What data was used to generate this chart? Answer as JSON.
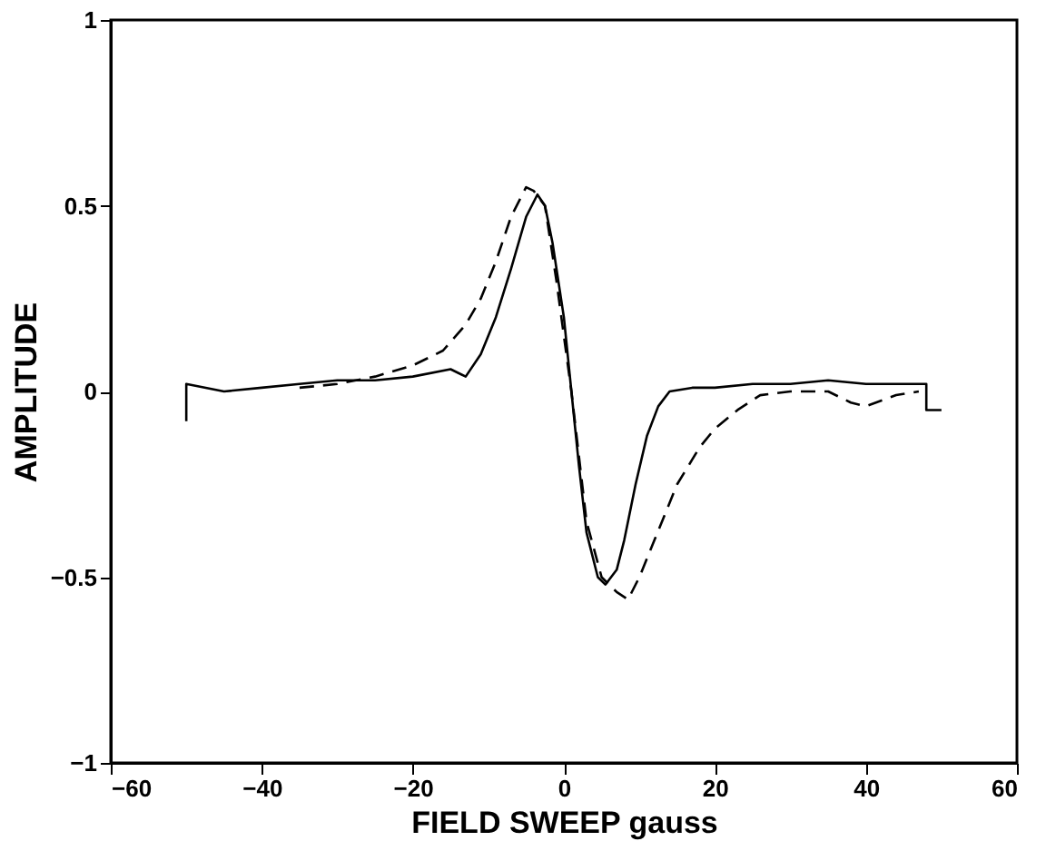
{
  "chart_data": {
    "type": "line",
    "xlabel": "FIELD SWEEP  gauss",
    "ylabel": "AMPLITUDE",
    "xlim": [
      -60,
      60
    ],
    "xticks": [
      -60,
      -40,
      -20,
      0,
      20,
      40,
      60
    ],
    "ylim": [
      -1,
      1
    ],
    "yticks": [
      -1,
      -0.5,
      0,
      0.5,
      1
    ],
    "grid": false,
    "series": [
      {
        "color": "#000000",
        "line_style": "solid",
        "x": [
          -50,
          -50,
          -45,
          -40,
          -35,
          -30,
          -25,
          -20,
          -15,
          -13,
          -11,
          -9,
          -7,
          -5,
          -3.5,
          -2.5,
          -1.5,
          0,
          1,
          2,
          3,
          4.5,
          5.5,
          7,
          8,
          9.5,
          11,
          12.5,
          14,
          17,
          20,
          25,
          30,
          35,
          40,
          45,
          48,
          48,
          50
        ],
        "values": [
          -0.08,
          0.02,
          0.0,
          0.01,
          0.02,
          0.03,
          0.03,
          0.04,
          0.06,
          0.04,
          0.1,
          0.2,
          0.33,
          0.47,
          0.53,
          0.5,
          0.4,
          0.2,
          0.0,
          -0.2,
          -0.38,
          -0.5,
          -0.52,
          -0.48,
          -0.4,
          -0.25,
          -0.12,
          -0.04,
          0.0,
          0.01,
          0.01,
          0.02,
          0.02,
          0.03,
          0.02,
          0.02,
          0.02,
          -0.05,
          -0.05
        ]
      },
      {
        "color": "#000000",
        "line_style": "dashed",
        "x": [
          -35,
          -30,
          -25,
          -20,
          -16,
          -13,
          -11,
          -9,
          -7,
          -5,
          -4,
          -2.5,
          -1,
          1,
          3,
          5,
          7,
          8.5,
          10,
          12,
          15,
          18,
          20,
          23,
          26,
          30,
          35,
          38,
          40,
          44,
          47
        ],
        "values": [
          0.01,
          0.02,
          0.04,
          0.07,
          0.11,
          0.18,
          0.25,
          0.35,
          0.47,
          0.55,
          0.54,
          0.5,
          0.3,
          0.0,
          -0.35,
          -0.5,
          -0.54,
          -0.56,
          -0.5,
          -0.4,
          -0.25,
          -0.15,
          -0.1,
          -0.05,
          -0.01,
          0.0,
          0.0,
          -0.03,
          -0.04,
          -0.01,
          0.0
        ]
      }
    ]
  }
}
